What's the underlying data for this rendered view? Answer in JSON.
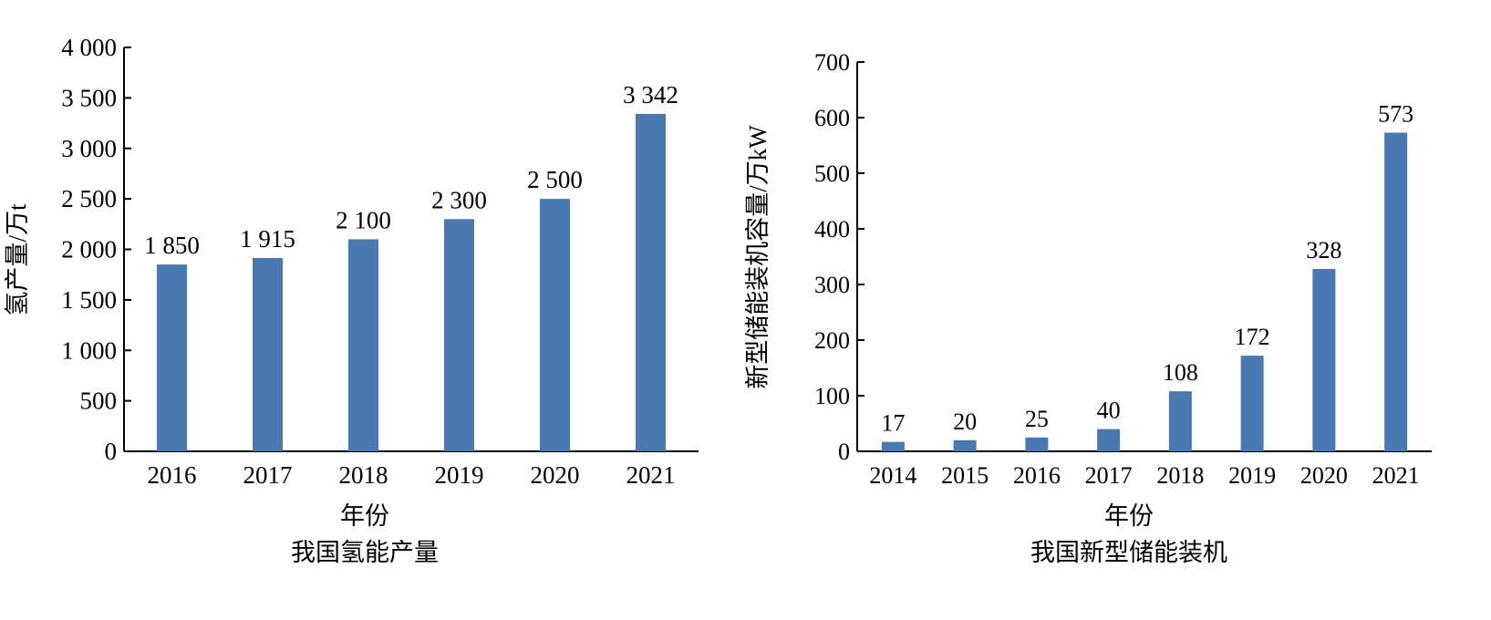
{
  "bar_color": "#4a79b2",
  "chart_data": [
    {
      "type": "bar",
      "categories": [
        "2016",
        "2017",
        "2018",
        "2019",
        "2020",
        "2021"
      ],
      "values": [
        1850,
        1915,
        2100,
        2300,
        2500,
        3342
      ],
      "value_labels": [
        "1 850",
        "1 915",
        "2 100",
        "2 300",
        "2 500",
        "3 342"
      ],
      "ylim": [
        0,
        4000
      ],
      "yticks": [
        0,
        500,
        1000,
        1500,
        2000,
        2500,
        3000,
        3500,
        4000
      ],
      "ytick_labels": [
        "0",
        "500",
        "1 000",
        "1 500",
        "2 000",
        "2 500",
        "3 000",
        "3 500",
        "4 000"
      ],
      "ylabel": "氢产量/万t",
      "xlabel": "年份",
      "caption": "我国氢能产量",
      "grid": false,
      "legend": "none"
    },
    {
      "type": "bar",
      "categories": [
        "2014",
        "2015",
        "2016",
        "2017",
        "2018",
        "2019",
        "2020",
        "2021"
      ],
      "values": [
        17,
        20,
        25,
        40,
        108,
        172,
        328,
        573
      ],
      "value_labels": [
        "17",
        "20",
        "25",
        "40",
        "108",
        "172",
        "328",
        "573"
      ],
      "ylim": [
        0,
        700
      ],
      "yticks": [
        0,
        100,
        200,
        300,
        400,
        500,
        600,
        700
      ],
      "ytick_labels": [
        "0",
        "100",
        "200",
        "300",
        "400",
        "500",
        "600",
        "700"
      ],
      "ylabel": "新型储能装机容量/万kW",
      "xlabel": "年份",
      "caption": "我国新型储能装机",
      "grid": false,
      "legend": "none"
    }
  ]
}
